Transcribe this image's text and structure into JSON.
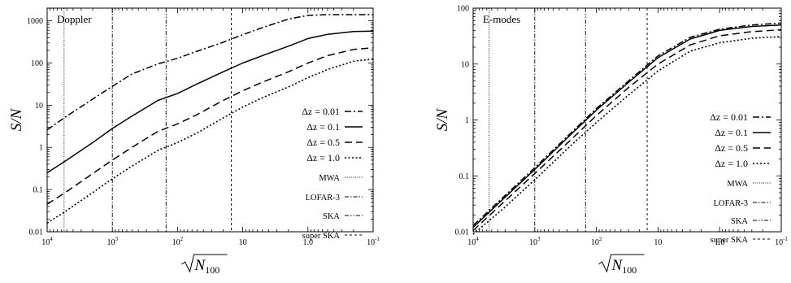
{
  "chart_data": [
    {
      "type": "line",
      "annotation": "Doppler",
      "ylabel": "S/N",
      "xlabel": "√N100",
      "x_scale": "log-reversed",
      "y_scale": "log",
      "xlim": [
        10000,
        0.1
      ],
      "ylim": [
        0.01,
        2000
      ],
      "x_ticks": [
        "10^4",
        "10^3",
        "10^2",
        "10",
        "1.0",
        "10^-1"
      ],
      "y_ticks": [
        "0.01",
        "0.1",
        "1",
        "10",
        "100",
        "1000"
      ],
      "series": [
        {
          "name": "Δz = 0.01",
          "style": "dashdot",
          "points": [
            [
              10000,
              2.6
            ],
            [
              5000,
              5.5
            ],
            [
              2000,
              14
            ],
            [
              1000,
              28
            ],
            [
              500,
              55
            ],
            [
              200,
              95
            ],
            [
              100,
              130
            ],
            [
              50,
              190
            ],
            [
              20,
              310
            ],
            [
              10,
              470
            ],
            [
              5,
              690
            ],
            [
              2,
              1100
            ],
            [
              1,
              1350
            ],
            [
              0.5,
              1400
            ],
            [
              0.2,
              1400
            ],
            [
              0.1,
              1400
            ]
          ]
        },
        {
          "name": "Δz = 0.1",
          "style": "solid",
          "points": [
            [
              10000,
              0.25
            ],
            [
              5000,
              0.5
            ],
            [
              2000,
              1.3
            ],
            [
              1000,
              2.8
            ],
            [
              500,
              5.5
            ],
            [
              200,
              13
            ],
            [
              100,
              19
            ],
            [
              50,
              32
            ],
            [
              20,
              62
            ],
            [
              10,
              100
            ],
            [
              5,
              150
            ],
            [
              2,
              250
            ],
            [
              1,
              380
            ],
            [
              0.5,
              480
            ],
            [
              0.2,
              560
            ],
            [
              0.1,
              570
            ]
          ]
        },
        {
          "name": "Δz = 0.5",
          "style": "dashed",
          "points": [
            [
              10000,
              0.045
            ],
            [
              5000,
              0.09
            ],
            [
              2000,
              0.24
            ],
            [
              1000,
              0.5
            ],
            [
              500,
              1
            ],
            [
              200,
              2.4
            ],
            [
              100,
              3.6
            ],
            [
              50,
              6
            ],
            [
              20,
              13
            ],
            [
              10,
              22
            ],
            [
              5,
              35
            ],
            [
              2,
              62
            ],
            [
              1,
              100
            ],
            [
              0.5,
              150
            ],
            [
              0.2,
              210
            ],
            [
              0.1,
              230
            ]
          ]
        },
        {
          "name": "Δz = 1.0",
          "style": "dotted",
          "points": [
            [
              10000,
              0.016
            ],
            [
              5000,
              0.032
            ],
            [
              2000,
              0.085
            ],
            [
              1000,
              0.18
            ],
            [
              500,
              0.36
            ],
            [
              200,
              0.85
            ],
            [
              100,
              1.3
            ],
            [
              50,
              2.2
            ],
            [
              20,
              5
            ],
            [
              10,
              9
            ],
            [
              5,
              15
            ],
            [
              2,
              27
            ],
            [
              1,
              45
            ],
            [
              0.5,
              70
            ],
            [
              0.2,
              110
            ],
            [
              0.1,
              125
            ]
          ]
        }
      ],
      "vlines": [
        {
          "name": "MWA",
          "x": 5500,
          "style": "fine-dot"
        },
        {
          "name": "LOFAR-3",
          "x": 1000,
          "style": "dashdot"
        },
        {
          "name": "SKA",
          "x": 150,
          "style": "dashdotdot"
        },
        {
          "name": "super SKA",
          "x": 15,
          "style": "short-dash"
        }
      ]
    },
    {
      "type": "line",
      "annotation": "E-modes",
      "ylabel": "S/N",
      "xlabel": "√N100",
      "x_scale": "log-reversed",
      "y_scale": "log",
      "xlim": [
        10000,
        0.1
      ],
      "ylim": [
        0.01,
        100
      ],
      "x_ticks": [
        "10^4",
        "10^3",
        "10^2",
        "10",
        "1.0",
        "10^-1"
      ],
      "y_ticks": [
        "0.01",
        "0.1",
        "1",
        "10",
        "100"
      ],
      "series": [
        {
          "name": "Δz = 0.01",
          "style": "dashdot",
          "points": [
            [
              10000,
              0.013
            ],
            [
              3000,
              0.045
            ],
            [
              1000,
              0.14
            ],
            [
              300,
              0.5
            ],
            [
              100,
              1.6
            ],
            [
              30,
              5
            ],
            [
              10,
              14
            ],
            [
              3,
              30
            ],
            [
              1,
              42
            ],
            [
              0.3,
              50
            ],
            [
              0.1,
              54
            ]
          ]
        },
        {
          "name": "Δz = 0.1",
          "style": "solid",
          "points": [
            [
              10000,
              0.012
            ],
            [
              3000,
              0.042
            ],
            [
              1000,
              0.13
            ],
            [
              300,
              0.47
            ],
            [
              100,
              1.5
            ],
            [
              30,
              4.7
            ],
            [
              10,
              13
            ],
            [
              3,
              28
            ],
            [
              1,
              40
            ],
            [
              0.3,
              47
            ],
            [
              0.1,
              50
            ]
          ]
        },
        {
          "name": "Δz = 0.5",
          "style": "dashed",
          "points": [
            [
              10000,
              0.0105
            ],
            [
              3000,
              0.036
            ],
            [
              1000,
              0.11
            ],
            [
              300,
              0.38
            ],
            [
              100,
              1.2
            ],
            [
              30,
              3.8
            ],
            [
              10,
              10
            ],
            [
              3,
              22
            ],
            [
              1,
              32
            ],
            [
              0.3,
              38
            ],
            [
              0.1,
              41
            ]
          ]
        },
        {
          "name": "Δz = 1.0",
          "style": "dotted",
          "points": [
            [
              10000,
              0.009
            ],
            [
              3000,
              0.028
            ],
            [
              1000,
              0.085
            ],
            [
              300,
              0.3
            ],
            [
              100,
              0.9
            ],
            [
              30,
              2.8
            ],
            [
              10,
              7.5
            ],
            [
              3,
              17
            ],
            [
              1,
              24
            ],
            [
              0.3,
              29
            ],
            [
              0.1,
              31
            ]
          ]
        }
      ],
      "vlines": [
        {
          "name": "MWA",
          "x": 5500,
          "style": "fine-dot"
        },
        {
          "name": "LOFAR-3",
          "x": 1000,
          "style": "dashdot"
        },
        {
          "name": "SKA",
          "x": 150,
          "style": "dashdotdot"
        },
        {
          "name": "super SKA",
          "x": 15,
          "style": "short-dash"
        }
      ]
    }
  ]
}
